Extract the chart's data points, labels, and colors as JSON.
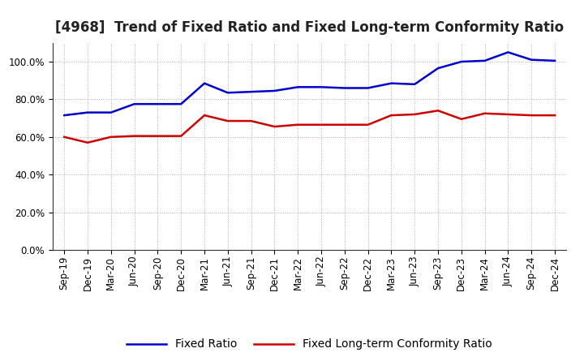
{
  "title": "[4968]  Trend of Fixed Ratio and Fixed Long-term Conformity Ratio",
  "x_labels": [
    "Sep-19",
    "Dec-19",
    "Mar-20",
    "Jun-20",
    "Sep-20",
    "Dec-20",
    "Mar-21",
    "Jun-21",
    "Sep-21",
    "Dec-21",
    "Mar-22",
    "Jun-22",
    "Sep-22",
    "Dec-22",
    "Mar-23",
    "Jun-23",
    "Sep-23",
    "Dec-23",
    "Mar-24",
    "Jun-24",
    "Sep-24",
    "Dec-24"
  ],
  "fixed_ratio": [
    71.5,
    73.0,
    73.0,
    77.5,
    77.5,
    77.5,
    88.5,
    83.5,
    84.0,
    84.5,
    86.5,
    86.5,
    86.0,
    86.0,
    88.5,
    88.0,
    96.5,
    100.0,
    100.5,
    105.0,
    101.0,
    100.5
  ],
  "fixed_lt_ratio": [
    60.0,
    57.0,
    60.0,
    60.5,
    60.5,
    60.5,
    71.5,
    68.5,
    68.5,
    65.5,
    66.5,
    66.5,
    66.5,
    66.5,
    71.5,
    72.0,
    74.0,
    69.5,
    72.5,
    72.0,
    71.5,
    71.5
  ],
  "fixed_ratio_color": "#0000cc",
  "fixed_lt_ratio_color": "#cc0000",
  "ylim": [
    0,
    110
  ],
  "yticks": [
    0,
    20,
    40,
    60,
    80,
    100
  ],
  "bg_color": "#ffffff",
  "plot_bg_color": "#ffffff",
  "grid_color": "#999999",
  "legend_fixed_ratio": "Fixed Ratio",
  "legend_fixed_lt_ratio": "Fixed Long-term Conformity Ratio",
  "title_fontsize": 12,
  "tick_fontsize": 8.5,
  "legend_fontsize": 10
}
